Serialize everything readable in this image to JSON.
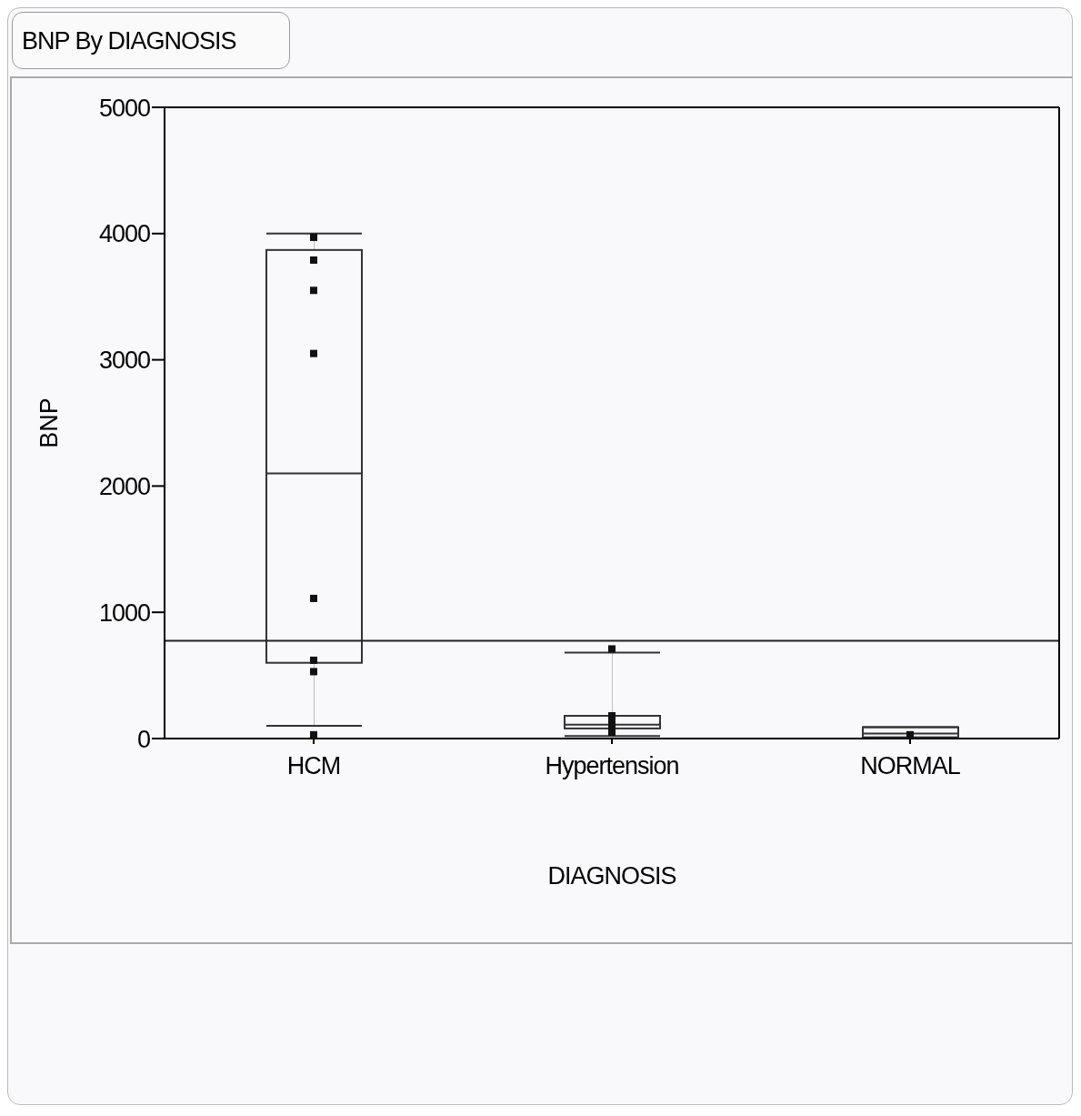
{
  "chart_data": {
    "type": "box",
    "title": "BNP By DIAGNOSIS",
    "xlabel": "DIAGNOSIS",
    "ylabel": "BNP",
    "categories": [
      "HCM",
      "Hypertension",
      "NORMAL"
    ],
    "boxes": [
      {
        "low": 100,
        "q1": 600,
        "median": 2100,
        "q3": 3870,
        "high": 4000
      },
      {
        "low": 20,
        "q1": 80,
        "median": 110,
        "q3": 180,
        "high": 680
      },
      {
        "low": 0,
        "q1": 10,
        "median": 40,
        "q3": 90,
        "high": 90
      }
    ],
    "color": "#333333",
    "ylim": [
      0,
      5000
    ],
    "yticks": [
      0,
      1000,
      2000,
      3000,
      4000,
      5000
    ],
    "ref_lines": [
      {
        "axis": "y",
        "value": 775,
        "color": "#222222"
      }
    ],
    "series": [
      {
        "type": "scatter",
        "color": "#111111",
        "x": [
          "HCM",
          "HCM",
          "HCM",
          "HCM",
          "HCM",
          "HCM",
          "HCM",
          "HCM",
          "Hypertension",
          "Hypertension",
          "Hypertension",
          "Hypertension",
          "Hypertension",
          "NORMAL"
        ],
        "values": [
          3970,
          3790,
          3550,
          3050,
          1110,
          620,
          530,
          30,
          710,
          180,
          140,
          100,
          50,
          30
        ]
      }
    ],
    "marker": "square"
  }
}
